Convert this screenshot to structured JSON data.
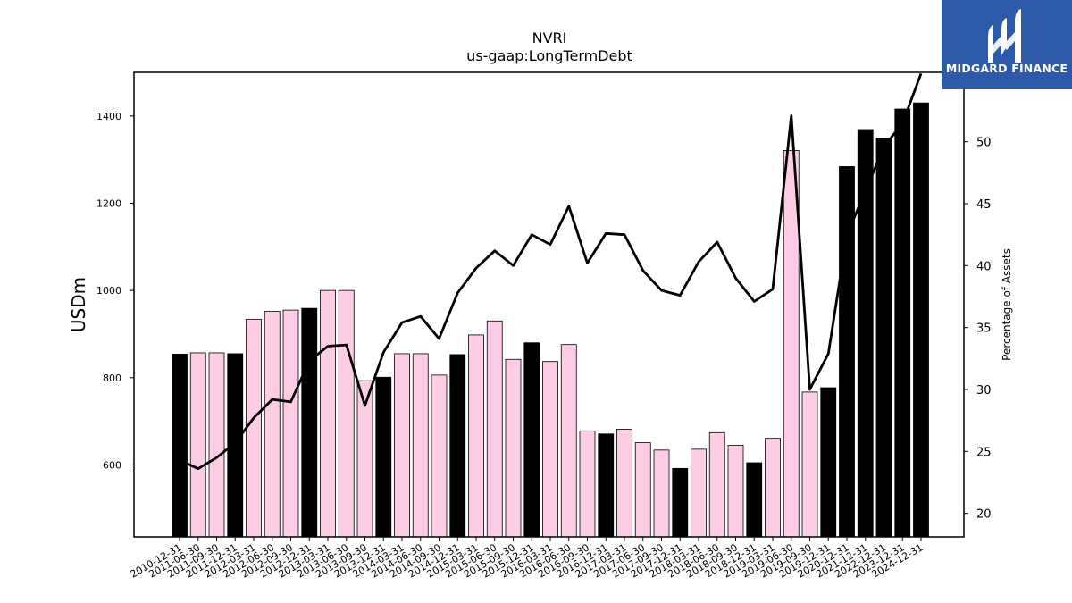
{
  "chart_data": {
    "type": "bar",
    "title": "NVRI",
    "subtitle": "us-gaap:LongTermDebt",
    "ylabel": "USDm",
    "y2label": "Percentage of Assets",
    "ylim": [
      435,
      1500
    ],
    "y2lim": [
      18.1,
      55.6
    ],
    "yticks": [
      600,
      800,
      1000,
      1200,
      1400
    ],
    "y2ticks": [
      20,
      25,
      30,
      35,
      40,
      45,
      50
    ],
    "categories": [
      "2010-12-31",
      "2011-06-30",
      "2011-09-30",
      "2011-12-31",
      "2012-03-31",
      "2012-06-30",
      "2012-09-30",
      "2012-12-31",
      "2013-03-31",
      "2013-06-30",
      "2013-09-30",
      "2013-12-31",
      "2014-03-31",
      "2014-06-30",
      "2014-09-30",
      "2014-12-31",
      "2015-03-31",
      "2015-06-30",
      "2015-09-30",
      "2015-12-31",
      "2016-03-31",
      "2016-06-30",
      "2016-09-30",
      "2016-12-31",
      "2017-03-31",
      "2017-06-30",
      "2017-09-30",
      "2017-12-31",
      "2018-03-31",
      "2018-06-30",
      "2018-09-30",
      "2018-12-31",
      "2019-03-31",
      "2019-06-30",
      "2019-09-30",
      "2019-12-31",
      "2020-12-31",
      "2021-12-31",
      "2022-12-31",
      "2023-12-31",
      "2024-12-31"
    ],
    "series": [
      {
        "kind": "bar",
        "values": [
          854,
          857,
          857,
          855,
          934,
          952,
          955,
          959,
          1000,
          1000,
          793,
          801,
          855,
          855,
          806,
          853,
          898,
          930,
          842,
          880,
          837,
          876,
          678,
          671,
          682,
          651,
          634,
          592,
          636,
          674,
          645,
          605,
          661,
          1321,
          767,
          777,
          1284,
          1369,
          1349,
          1416,
          1430
        ],
        "annual": [
          true,
          false,
          false,
          true,
          false,
          false,
          false,
          true,
          false,
          false,
          false,
          true,
          false,
          false,
          false,
          true,
          false,
          false,
          false,
          true,
          false,
          false,
          false,
          true,
          false,
          false,
          false,
          true,
          false,
          false,
          false,
          true,
          false,
          false,
          false,
          true,
          true,
          true,
          true,
          true,
          true
        ]
      },
      {
        "kind": "line",
        "axis": "right",
        "values": [
          24.3,
          23.6,
          24.5,
          25.7,
          27.7,
          29.2,
          29.0,
          32.3,
          33.5,
          33.6,
          28.7,
          33.0,
          35.4,
          35.9,
          34.1,
          37.8,
          39.8,
          41.2,
          40.0,
          42.5,
          41.7,
          44.8,
          40.2,
          42.6,
          42.5,
          39.6,
          38.0,
          37.6,
          40.3,
          41.9,
          39.0,
          37.1,
          38.1,
          52.1,
          30.0,
          32.9,
          42.5,
          46.0,
          49.6,
          51.5,
          55.5
        ]
      }
    ],
    "colors": {
      "annual_bar": "#000000",
      "quarter_bar": "#fccde5",
      "bar_edge": "#000000",
      "line": "#000000"
    },
    "grid": false
  },
  "logo": {
    "text": "MIDGARD FINANCE",
    "bg": "#2d5aa8"
  }
}
